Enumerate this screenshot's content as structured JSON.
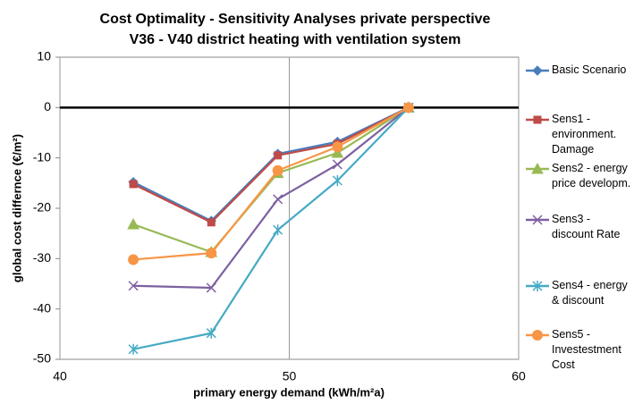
{
  "chart_data": {
    "type": "line",
    "title": "Cost Optimality  - Sensitivity Analyses private perspective",
    "subtitle": "V36 - V40  district heating with ventilation system",
    "x_label": "primary energy demand (kWh/m²a)",
    "y_label": "global cost differnce (€/m²)",
    "x": [
      43.2,
      46.6,
      49.5,
      52.1,
      55.2
    ],
    "xlim": [
      40,
      60
    ],
    "xticks": [
      40,
      50,
      60
    ],
    "ylim": [
      -50,
      10
    ],
    "yticks": [
      -50,
      -40,
      -30,
      -20,
      -10,
      0,
      10
    ],
    "grid": "x",
    "legend": "right",
    "series": [
      {
        "name": "Basic Scenario",
        "color": "#4a7ebb",
        "marker": "diamond",
        "values": [
          -14.8,
          -22.5,
          -9.2,
          -6.8,
          0
        ]
      },
      {
        "name": "Sens1 - environment. Damage",
        "color": "#be4b48",
        "marker": "square",
        "values": [
          -15.2,
          -22.8,
          -9.5,
          -7.2,
          0
        ]
      },
      {
        "name": "Sens2 - energy price developm.",
        "color": "#98b954",
        "marker": "triangle",
        "values": [
          -23.2,
          -28.7,
          -13.0,
          -9.0,
          0
        ]
      },
      {
        "name": "Sens3 - discount Rate",
        "color": "#7d60a0",
        "marker": "x",
        "values": [
          -35.4,
          -35.8,
          -18.2,
          -11.3,
          0
        ]
      },
      {
        "name": "Sens4 - energy & discount",
        "color": "#46aac5",
        "marker": "star",
        "values": [
          -48.0,
          -44.8,
          -24.3,
          -14.5,
          0
        ]
      },
      {
        "name": "Sens5 - Investestment Cost",
        "color": "#f79646",
        "marker": "circle",
        "values": [
          -30.2,
          -28.9,
          -12.5,
          -7.8,
          0
        ]
      }
    ]
  }
}
